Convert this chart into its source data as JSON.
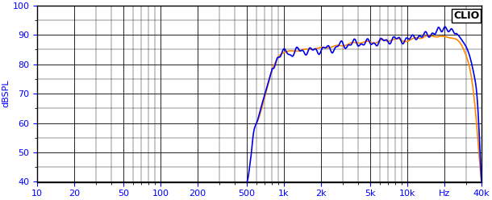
{
  "title": "CLIO",
  "ylabel": "dBSPL",
  "xmin": 10,
  "xmax": 40000,
  "ymin": 40,
  "ymax": 100,
  "yticks": [
    40,
    50,
    60,
    70,
    80,
    90,
    100
  ],
  "xticks": [
    10,
    20,
    50,
    100,
    200,
    500,
    1000,
    2000,
    5000,
    10000,
    20000,
    40000
  ],
  "xticklabels": [
    "10",
    "20",
    "50",
    "100",
    "200",
    "500",
    "1k",
    "2k",
    "5k",
    "10k",
    "Hz",
    "40k"
  ],
  "blue_color": "#0000EE",
  "orange_color": "#FF8800",
  "background_color": "#FFFFFF",
  "grid_color": "#000000",
  "line_width": 1.2
}
